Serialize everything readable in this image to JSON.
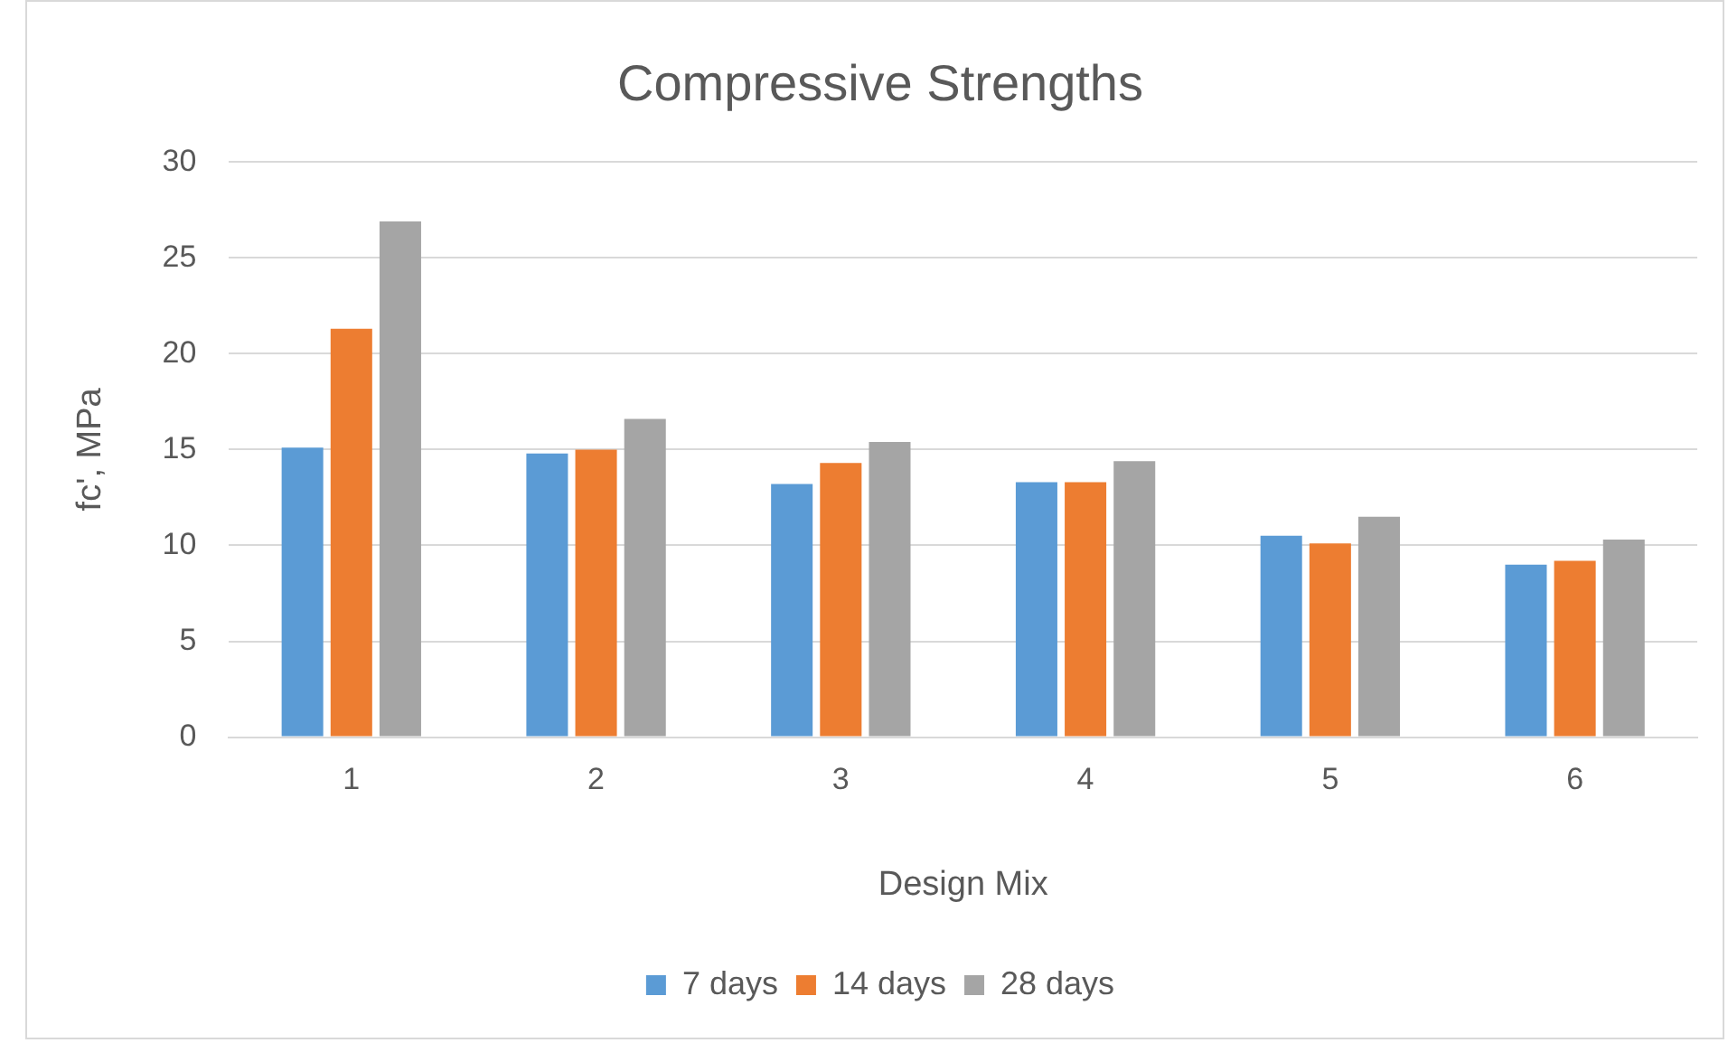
{
  "chart_data": {
    "type": "bar",
    "title": "Compressive Strengths",
    "xlabel": "Design Mix",
    "ylabel": "fc', MPa",
    "categories": [
      "1",
      "2",
      "3",
      "4",
      "5",
      "6"
    ],
    "series": [
      {
        "name": "7 days",
        "color": "#5b9bd5",
        "values": [
          15.1,
          14.8,
          13.2,
          13.3,
          10.5,
          9.0
        ]
      },
      {
        "name": "14 days",
        "color": "#ed7d31",
        "values": [
          21.3,
          15.0,
          14.3,
          13.3,
          10.1,
          9.2
        ]
      },
      {
        "name": "28 days",
        "color": "#a5a5a5",
        "values": [
          26.9,
          16.6,
          15.4,
          14.4,
          11.5,
          10.3
        ]
      }
    ],
    "ylim": [
      0,
      30
    ],
    "yticks": [
      0,
      5,
      10,
      15,
      20,
      25,
      30
    ],
    "grid": "y",
    "legend": "bottom"
  }
}
